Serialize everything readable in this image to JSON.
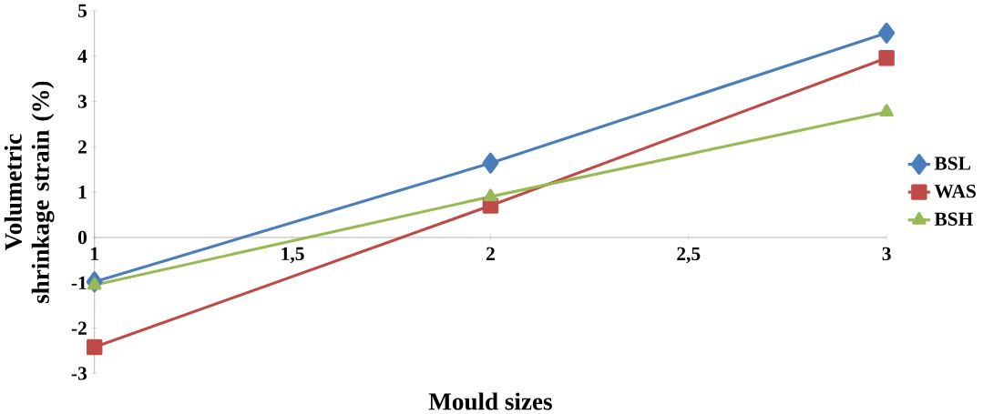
{
  "chart_data": {
    "type": "line",
    "xlabel": "Mould sizes",
    "ylabel": "Volumetric shrinkage strain (%)",
    "x": [
      1,
      2,
      3
    ],
    "xlim": [
      1,
      3
    ],
    "ylim": [
      -3,
      5
    ],
    "xticks": [
      1,
      {
        "value": 1.5,
        "label": "1,5"
      },
      2,
      {
        "value": 2.5,
        "label": "2,5"
      },
      3
    ],
    "yticks": [
      -3,
      -2,
      -1,
      0,
      1,
      2,
      3,
      4,
      5
    ],
    "legend": "right",
    "grid": false,
    "series": [
      {
        "name": "BSL",
        "color": "#4a7ebb",
        "marker": "diamond",
        "values": [
          -0.98,
          1.64,
          4.51
        ]
      },
      {
        "name": "WAS",
        "color": "#be4b48",
        "marker": "square",
        "values": [
          -2.42,
          0.7,
          3.96
        ]
      },
      {
        "name": "BSH",
        "color": "#98b954",
        "marker": "triangle",
        "values": [
          -1.05,
          0.9,
          2.77
        ]
      }
    ]
  }
}
